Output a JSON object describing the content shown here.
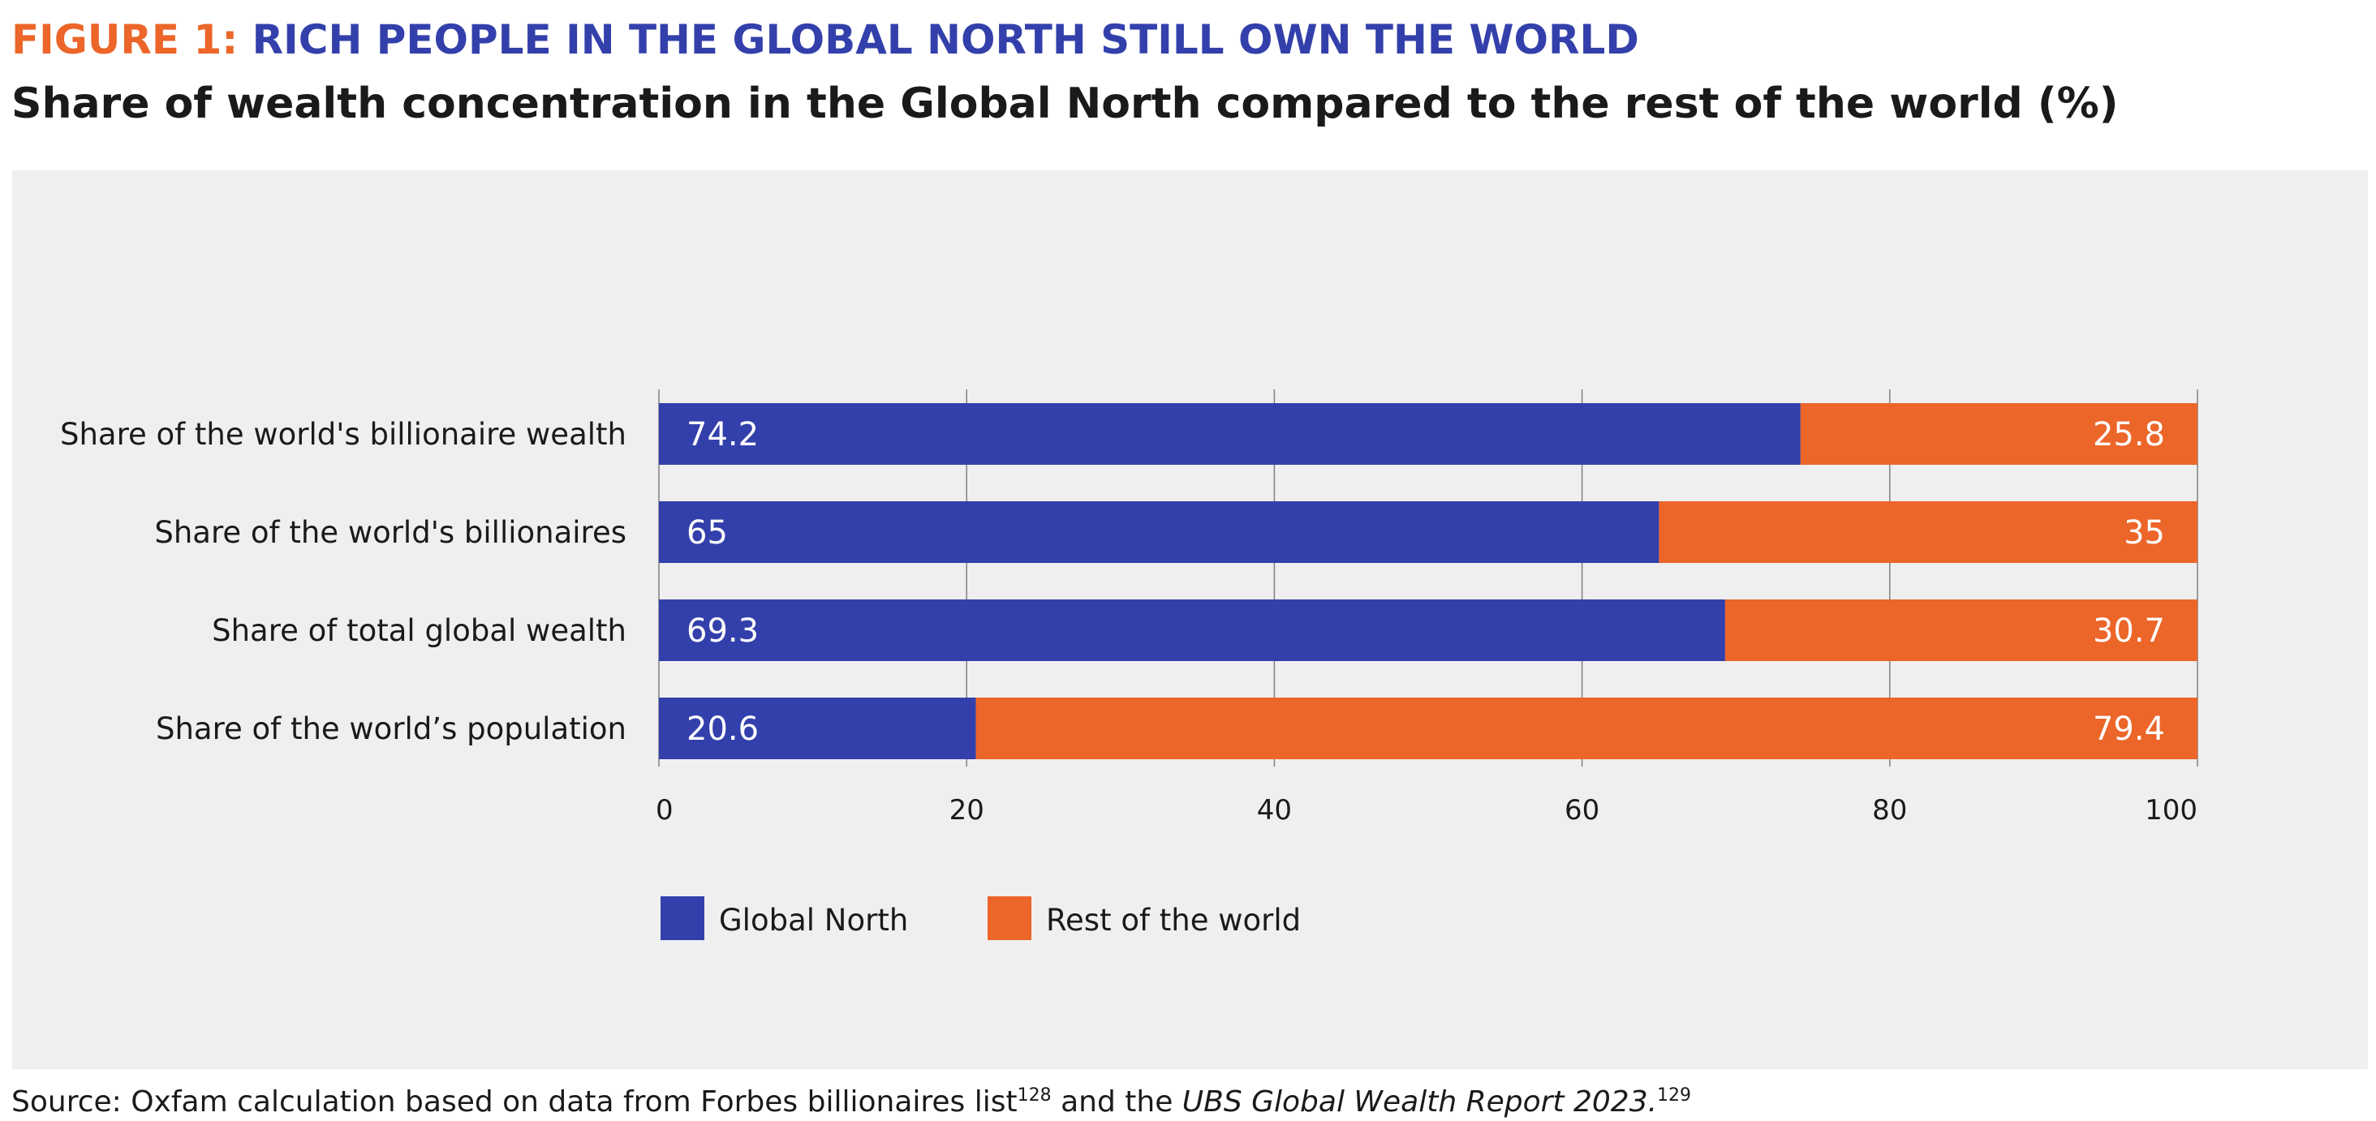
{
  "figure": {
    "number_label": "FIGURE 1:",
    "heading": "RICH PEOPLE IN THE GLOBAL NORTH STILL OWN THE WORLD",
    "subtitle": "Share of wealth concentration in the Global North compared to the rest of the world (%)"
  },
  "source": {
    "text_before": "Source: Oxfam calculation based on data from Forbes billionaires list",
    "ref_1": "128",
    "text_middle": " and the ",
    "report_title": "UBS Global Wealth Report 2023.",
    "ref_2": "129"
  },
  "colors": {
    "global_north": "#3340ab",
    "rest_of_world": "#ec6529",
    "panel_background": "#efefef",
    "gridline": "#808080"
  },
  "chart_data": {
    "type": "bar",
    "orientation": "horizontal",
    "stacked": true,
    "title": "",
    "xlabel": "",
    "ylabel": "",
    "xlim": [
      0,
      100
    ],
    "x_ticks": [
      0,
      20,
      40,
      60,
      80,
      100
    ],
    "grid": true,
    "legend_position": "bottom-left",
    "categories": [
      "Share of the world's billionaire wealth",
      "Share of the world's billionaires",
      "Share of total global wealth",
      "Share of the world’s population"
    ],
    "series": [
      {
        "name": "Global North",
        "color": "#3340ab",
        "values": [
          74.2,
          65,
          69.3,
          20.6
        ]
      },
      {
        "name": "Rest of the world",
        "color": "#ec6529",
        "values": [
          25.8,
          35,
          30.7,
          79.4
        ]
      }
    ]
  }
}
